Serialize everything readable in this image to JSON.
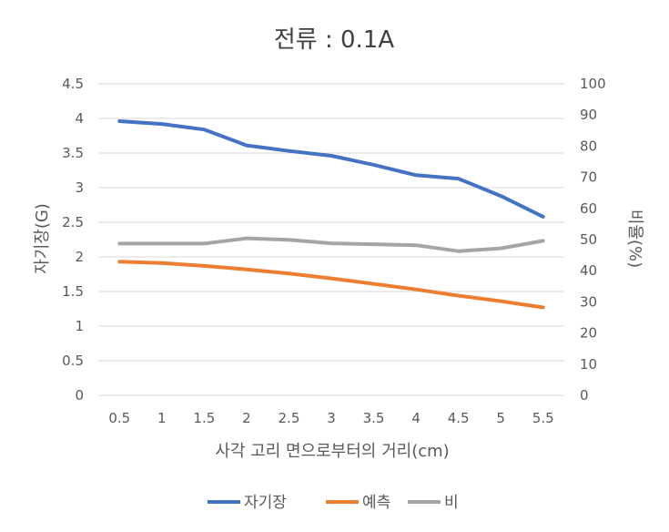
{
  "chart_data": {
    "type": "line",
    "title": "전류 : 0.1A",
    "xlabel": "사각 고리 면으로부터의 거리(cm)",
    "ylabel": "자기장(G)",
    "y2label": "비율(%)",
    "categories": [
      "0.5",
      "1",
      "1.5",
      "2",
      "2.5",
      "3",
      "3.5",
      "4",
      "4.5",
      "5",
      "5.5"
    ],
    "ylim": [
      0,
      4.5
    ],
    "yticks": [
      "0",
      "0.5",
      "1",
      "1.5",
      "2",
      "2.5",
      "3",
      "3.5",
      "4",
      "4.5"
    ],
    "y2lim": [
      0,
      100
    ],
    "y2ticks": [
      "0",
      "10",
      "20",
      "30",
      "40",
      "50",
      "60",
      "70",
      "80",
      "90",
      "100"
    ],
    "grid": true,
    "legend_position": "bottom",
    "series": [
      {
        "name": "자기장",
        "axis": "left",
        "color": "#4472C4",
        "values": [
          3.96,
          3.92,
          3.84,
          3.61,
          3.53,
          3.46,
          3.33,
          3.18,
          3.13,
          2.88,
          2.58
        ]
      },
      {
        "name": "예측",
        "axis": "left",
        "color": "#ED7D31",
        "values": [
          1.93,
          1.91,
          1.87,
          1.82,
          1.76,
          1.69,
          1.61,
          1.53,
          1.44,
          1.36,
          1.27
        ]
      },
      {
        "name": "비",
        "axis": "right",
        "color": "#A5A5A5",
        "values": [
          48.7,
          48.7,
          48.7,
          50.4,
          49.9,
          48.8,
          48.5,
          48.2,
          46.3,
          47.2,
          49.6
        ]
      }
    ]
  }
}
